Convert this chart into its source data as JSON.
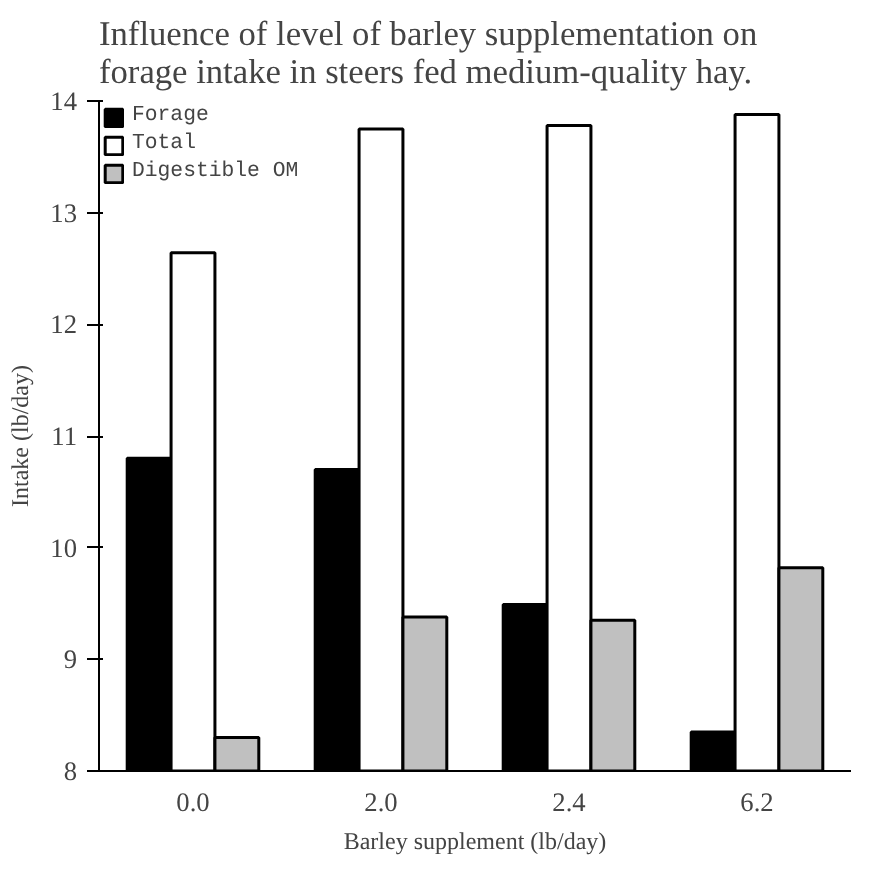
{
  "chart_data": {
    "type": "bar",
    "title": "Influence of level of barley supplementation on forage intake in steers fed medium-quality hay.",
    "xlabel": "Barley supplement (lb/day)",
    "ylabel": "Intake (lb/day)",
    "categories": [
      "0.0",
      "2.0",
      "2.4",
      "6.2"
    ],
    "series": [
      {
        "name": "Forage",
        "color": "#000000",
        "values": [
          10.8,
          10.7,
          9.49,
          8.35
        ]
      },
      {
        "name": "Total",
        "color": "#ffffff",
        "values": [
          12.64,
          13.75,
          13.78,
          13.88
        ]
      },
      {
        "name": "Digestible OM",
        "color": "#c0c0c0",
        "values": [
          8.3,
          9.38,
          9.35,
          9.82
        ]
      }
    ],
    "ylim": [
      8,
      14
    ],
    "yticks": [
      8,
      9,
      10,
      11,
      12,
      13,
      14
    ],
    "grid": false,
    "legend": "top left"
  }
}
